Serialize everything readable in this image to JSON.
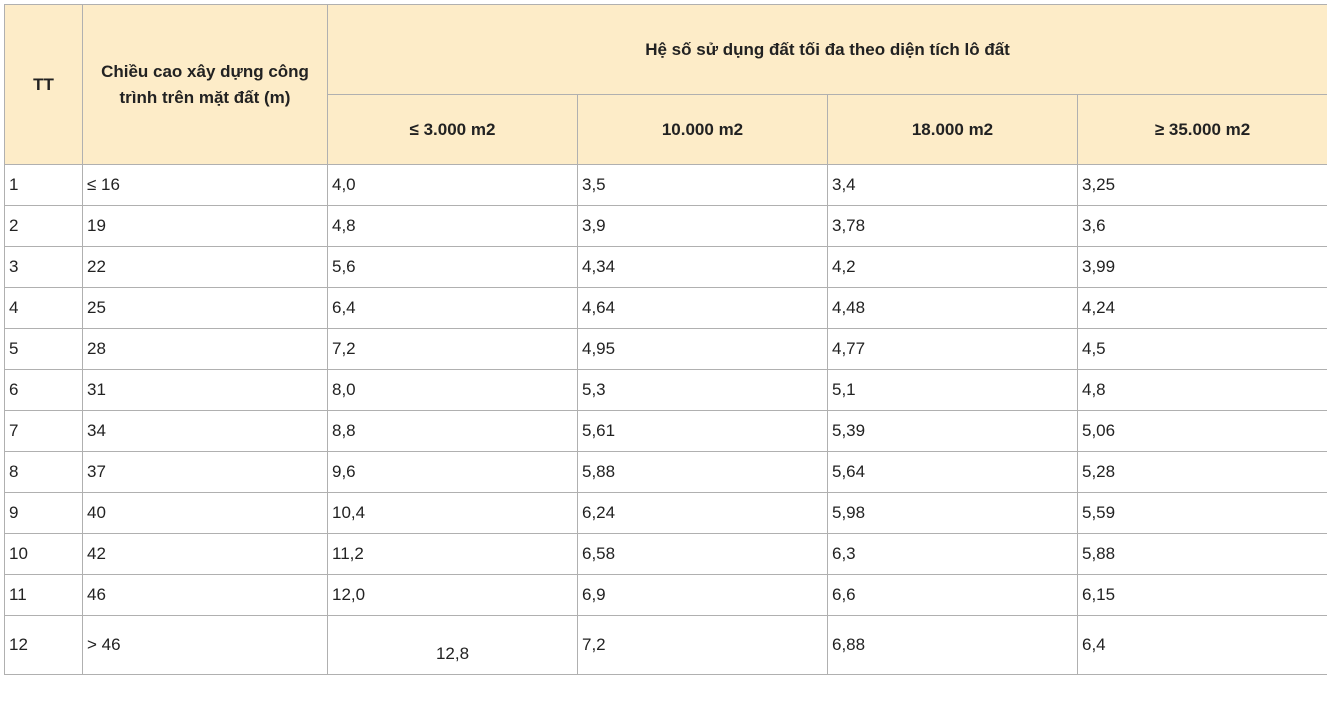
{
  "type": "table",
  "colors": {
    "header_bg": "#fdecc8",
    "cell_bg": "#ffffff",
    "border": "#b0b0b0",
    "text": "#222222"
  },
  "fonts": {
    "family": "Arial",
    "header_size_pt": 13,
    "header_weight": 700,
    "body_size_pt": 13,
    "body_weight": 400
  },
  "columns": {
    "tt": "TT",
    "height": "Chiều cao xây dựng công trình trên mặt đất (m)",
    "group": "Hệ số sử dụng đất tối đa theo diện tích lô đất",
    "sub": [
      "≤ 3.000 m2",
      "10.000 m2",
      "18.000 m2",
      "≥ 35.000 m2"
    ]
  },
  "rows": [
    {
      "tt": "1",
      "h": "≤ 16",
      "v": [
        " 4,0",
        " 3,5",
        "3,4",
        "3,25"
      ]
    },
    {
      "tt": "2",
      "h": "19",
      "v": [
        "4,8",
        "3,9",
        "3,78",
        "3,6"
      ]
    },
    {
      "tt": "3",
      "h": "22",
      "v": [
        " 5,6",
        "4,34",
        "4,2",
        "3,99"
      ]
    },
    {
      "tt": "4",
      "h": "25",
      "v": [
        "6,4",
        " 4,64",
        "4,48",
        "4,24"
      ]
    },
    {
      "tt": "5",
      "h": "28",
      "v": [
        " 7,2",
        " 4,95",
        "4,77",
        "4,5"
      ]
    },
    {
      "tt": "6",
      "h": "31",
      "v": [
        "8,0",
        " 5,3",
        "5,1",
        "4,8"
      ]
    },
    {
      "tt": "7",
      "h": "34",
      "v": [
        " 8,8",
        " 5,61",
        "5,39",
        "5,06"
      ]
    },
    {
      "tt": "8",
      "h": "37",
      "v": [
        "9,6",
        " 5,88",
        "5,64",
        "5,28"
      ]
    },
    {
      "tt": "9",
      "h": "40",
      "v": [
        " 10,4",
        " 6,24",
        "5,98",
        "5,59"
      ]
    },
    {
      "tt": "10",
      "h": "42",
      "v": [
        " 11,2",
        " 6,58",
        "6,3",
        "5,88"
      ]
    },
    {
      "tt": " 11",
      "h": "46",
      "v": [
        " 12,0",
        " 6,9",
        "6,6",
        "6,15"
      ]
    },
    {
      "tt": "12",
      "h": " > 46",
      "v": [
        "12,8",
        "7,2",
        "6,88",
        "6,4"
      ]
    }
  ]
}
